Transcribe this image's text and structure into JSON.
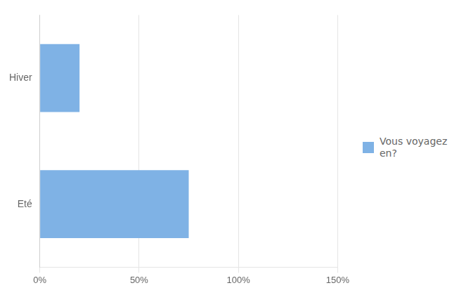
{
  "chart_data": {
    "type": "bar",
    "orientation": "horizontal",
    "categories": [
      "Hiver",
      "Eté"
    ],
    "series": [
      {
        "name": "Vous voyagez\nen?",
        "color": "#7FB2E5",
        "values": [
          20,
          75
        ]
      }
    ],
    "xlim": [
      0,
      150
    ],
    "xticks": [
      {
        "value": 0,
        "label": "0%"
      },
      {
        "value": 50,
        "label": "50%"
      },
      {
        "value": 100,
        "label": "100%"
      },
      {
        "value": 150,
        "label": "150%"
      }
    ],
    "grid": true,
    "legend": "right"
  }
}
